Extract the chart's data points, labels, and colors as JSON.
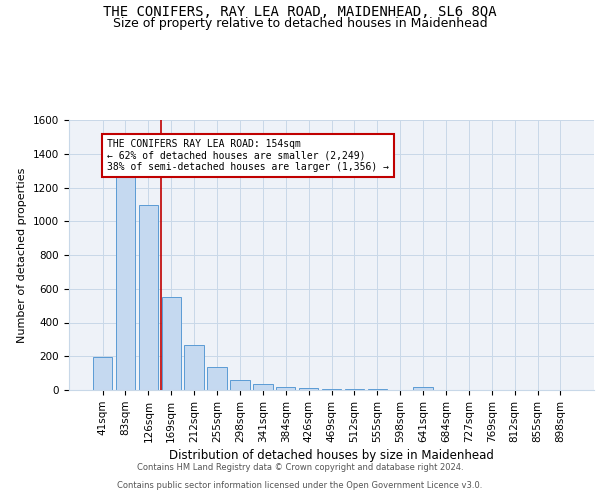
{
  "title": "THE CONIFERS, RAY LEA ROAD, MAIDENHEAD, SL6 8QA",
  "subtitle": "Size of property relative to detached houses in Maidenhead",
  "xlabel": "Distribution of detached houses by size in Maidenhead",
  "ylabel": "Number of detached properties",
  "categories": [
    "41sqm",
    "83sqm",
    "126sqm",
    "169sqm",
    "212sqm",
    "255sqm",
    "298sqm",
    "341sqm",
    "384sqm",
    "426sqm",
    "469sqm",
    "512sqm",
    "555sqm",
    "598sqm",
    "641sqm",
    "684sqm",
    "727sqm",
    "769sqm",
    "812sqm",
    "855sqm",
    "898sqm"
  ],
  "values": [
    196,
    1270,
    1097,
    551,
    268,
    134,
    62,
    35,
    18,
    13,
    8,
    5,
    3,
    0,
    15,
    0,
    0,
    0,
    0,
    0,
    0
  ],
  "bar_color": "#c5d9f0",
  "bar_edge_color": "#5b9bd5",
  "grid_color": "#c8d8e8",
  "background_color": "#eef2f8",
  "red_line_x": 2.55,
  "annotation_title": "THE CONIFERS RAY LEA ROAD: 154sqm",
  "annotation_line1": "← 62% of detached houses are smaller (2,249)",
  "annotation_line2": "38% of semi-detached houses are larger (1,356) →",
  "footer_line1": "Contains HM Land Registry data © Crown copyright and database right 2024.",
  "footer_line2": "Contains public sector information licensed under the Open Government Licence v3.0.",
  "ylim": [
    0,
    1600
  ],
  "yticks": [
    0,
    200,
    400,
    600,
    800,
    1000,
    1200,
    1400,
    1600
  ],
  "title_fontsize": 10,
  "subtitle_fontsize": 9,
  "xlabel_fontsize": 8.5,
  "ylabel_fontsize": 8,
  "tick_fontsize": 7.5,
  "annotation_fontsize": 7,
  "footer_fontsize": 6
}
